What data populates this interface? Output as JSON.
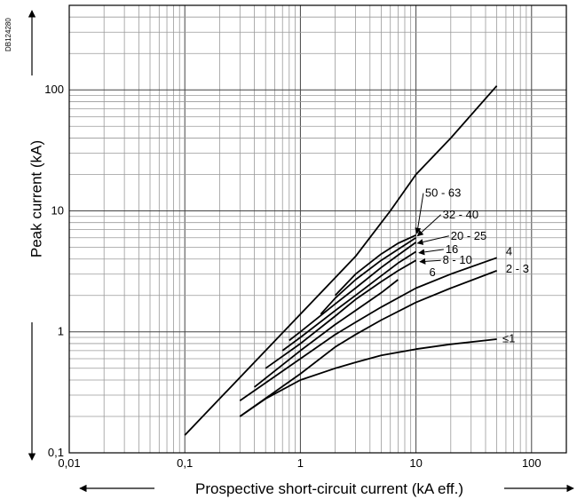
{
  "doc_code": "DB124280",
  "chart_data": {
    "type": "line",
    "xlabel": "Prospective short-circuit current (kA eff.)",
    "ylabel": "Peak current (kA)",
    "x_scale": "log",
    "y_scale": "log",
    "xlim": [
      0.01,
      200
    ],
    "ylim": [
      0.1,
      500
    ],
    "x_ticks": [
      0.01,
      0.1,
      1,
      10,
      100
    ],
    "x_tick_labels": [
      "0,01",
      "0,1",
      "1",
      "10",
      "100"
    ],
    "y_ticks": [
      0.1,
      1,
      10,
      100
    ],
    "y_tick_labels": [
      "0,1",
      "1",
      "10",
      "100"
    ],
    "grid": true,
    "series": [
      {
        "name": "",
        "x": [
          0.1,
          3,
          6,
          10,
          20,
          50
        ],
        "y": [
          0.14,
          4.2,
          10,
          20,
          40,
          108
        ]
      },
      {
        "name": "50 - 63",
        "x": [
          2,
          3,
          5,
          7,
          10
        ],
        "y": [
          2.0,
          3.0,
          4.4,
          5.4,
          6.3
        ]
      },
      {
        "name": "32 - 40",
        "x": [
          1.5,
          2,
          3,
          5,
          7,
          10
        ],
        "y": [
          1.4,
          1.9,
          2.7,
          3.9,
          4.8,
          6.0
        ]
      },
      {
        "name": "20 - 25",
        "x": [
          0.8,
          1,
          2,
          3,
          5,
          7,
          10
        ],
        "y": [
          0.85,
          1.0,
          1.7,
          2.3,
          3.4,
          4.3,
          5.5
        ]
      },
      {
        "name": "16",
        "x": [
          0.7,
          1,
          2,
          3,
          5,
          7,
          10
        ],
        "y": [
          0.7,
          0.9,
          1.5,
          2.0,
          2.9,
          3.7,
          4.6
        ]
      },
      {
        "name": "8 - 10",
        "x": [
          0.5,
          1,
          2,
          3,
          5,
          7,
          10
        ],
        "y": [
          0.5,
          0.8,
          1.35,
          1.85,
          2.6,
          3.2,
          3.9
        ]
      },
      {
        "name": "6",
        "x": [
          0.4,
          1,
          2,
          3,
          5,
          7
        ],
        "y": [
          0.35,
          0.7,
          1.15,
          1.5,
          2.1,
          2.7
        ]
      },
      {
        "name": "4",
        "x": [
          0.3,
          1,
          2,
          3,
          5,
          10,
          20,
          50
        ],
        "y": [
          0.27,
          0.6,
          0.95,
          1.2,
          1.6,
          2.3,
          3.0,
          4.1
        ]
      },
      {
        "name": "2 - 3",
        "x": [
          0.3,
          1,
          2,
          3,
          5,
          10,
          20,
          50
        ],
        "y": [
          0.2,
          0.45,
          0.75,
          0.95,
          1.25,
          1.75,
          2.3,
          3.2
        ]
      },
      {
        "name": "≤1",
        "x": [
          0.3,
          0.5,
          1,
          2,
          3,
          5,
          10,
          20,
          50
        ],
        "y": [
          0.2,
          0.28,
          0.4,
          0.5,
          0.56,
          0.64,
          0.72,
          0.79,
          0.87
        ]
      }
    ],
    "curve_labels": [
      {
        "text": "50 - 63",
        "x": 12,
        "y": 14,
        "arrow_to": [
          10.2,
          6.5
        ]
      },
      {
        "text": "32 - 40",
        "x": 17,
        "y": 9.3,
        "arrow_to": [
          10.3,
          6.2
        ]
      },
      {
        "text": "20 - 25",
        "x": 20,
        "y": 6.2,
        "arrow_to": [
          10.3,
          5.4
        ]
      },
      {
        "text": "16",
        "x": 18,
        "y": 4.8,
        "arrow_to": [
          10.6,
          4.5
        ]
      },
      {
        "text": "8 - 10",
        "x": 17,
        "y": 3.9,
        "arrow_to": [
          10.8,
          3.8
        ]
      },
      {
        "text": "6",
        "x": 13,
        "y": 3.1,
        "arrow_to": null
      },
      {
        "text": "4",
        "x": 60,
        "y": 4.6,
        "arrow_to": null
      },
      {
        "text": "2 - 3",
        "x": 60,
        "y": 3.3,
        "arrow_to": null
      },
      {
        "text": "≤1",
        "x": 56,
        "y": 0.88,
        "arrow_to": null
      }
    ]
  }
}
